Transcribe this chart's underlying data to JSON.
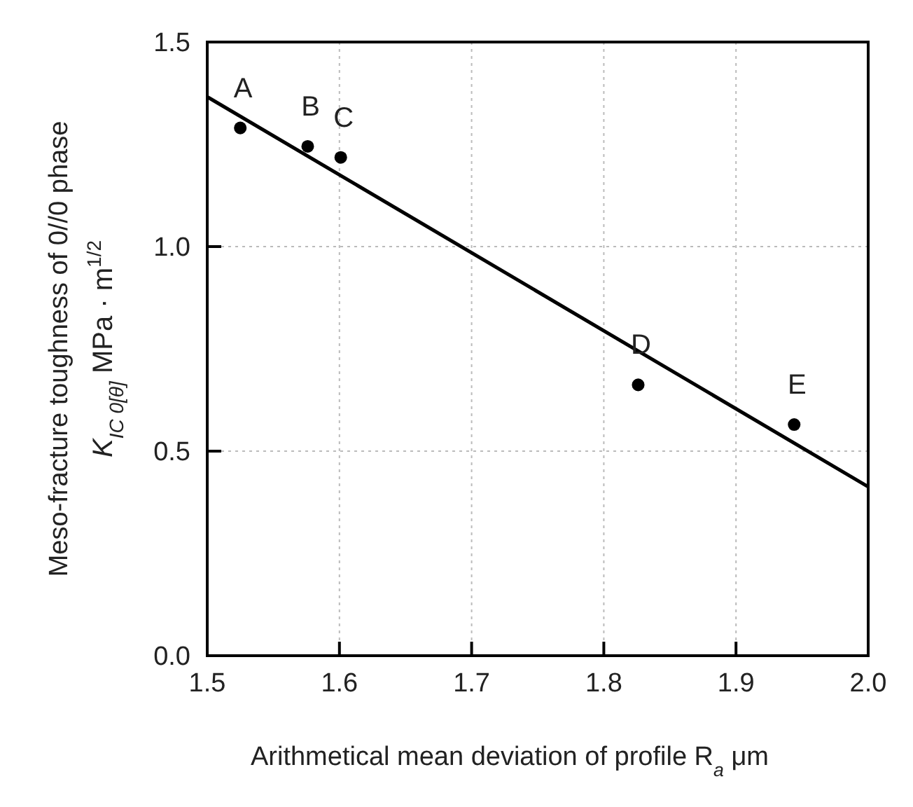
{
  "chart_data": {
    "type": "scatter",
    "xlabel": "Arithmetical mean deviation of profile  R$_{a}$  μm",
    "ylabel": "Meso-fracture toughness of 0//0 phase\n$_{}$K$_{IC 0[θ]}$  MPa · m$^{1/2}$",
    "x": [
      1.525,
      1.576,
      1.601,
      1.826,
      1.944
    ],
    "series": [
      {
        "color": "#000000",
        "marker": "circle",
        "values": [
          1.29,
          1.245,
          1.218,
          0.662,
          0.565
        ]
      },
      {
        "type": "line",
        "color": "#000000",
        "marker": "none",
        "line_style": "solid",
        "x": [
          1.5,
          2.0
        ],
        "values": [
          1.366,
          0.413
        ]
      }
    ],
    "annotations": [
      {
        "text": "A",
        "x": 1.525,
        "y": 1.29
      },
      {
        "text": "B",
        "x": 1.576,
        "y": 1.245
      },
      {
        "text": "C",
        "x": 1.601,
        "y": 1.218
      },
      {
        "text": "D",
        "x": 1.826,
        "y": 0.662
      },
      {
        "text": "E",
        "x": 1.944,
        "y": 0.565
      }
    ],
    "xlim": [
      1.5,
      2.0
    ],
    "xticks": [
      {
        "value": 1.5,
        "label": "1.5"
      },
      {
        "value": 1.6,
        "label": "1.6"
      },
      {
        "value": 1.7,
        "label": "1.7"
      },
      {
        "value": 1.8,
        "label": "1.8"
      },
      {
        "value": 1.9,
        "label": "1.9"
      },
      {
        "value": 2.0,
        "label": "2.0"
      }
    ],
    "ylim": [
      0,
      1.5
    ],
    "yticks": [
      {
        "value": 0,
        "label": "0.0"
      },
      {
        "value": 0.5,
        "label": "0.5"
      },
      {
        "value": 1.0,
        "label": "1.0"
      },
      {
        "value": 1.5,
        "label": "1.5"
      }
    ],
    "grid": true
  }
}
